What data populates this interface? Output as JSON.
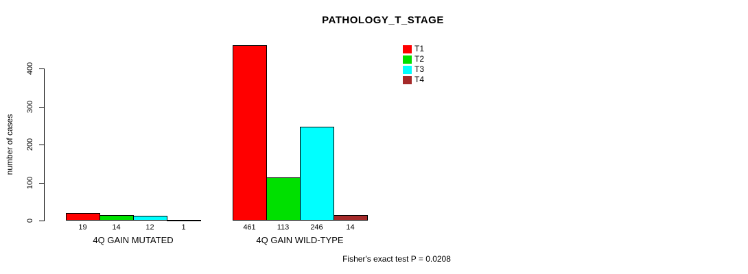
{
  "title": "PATHOLOGY_T_STAGE",
  "y_axis": {
    "label": "number of cases",
    "ticks": [
      0,
      100,
      200,
      300,
      400
    ]
  },
  "footer": "Fisher's exact test P = 0.0208",
  "chart_data": {
    "type": "bar",
    "title": "PATHOLOGY_T_STAGE",
    "xlabel": "",
    "ylabel": "number of cases",
    "categories": [
      "4Q GAIN MUTATED",
      "4Q GAIN WILD-TYPE"
    ],
    "series": [
      {
        "name": "T1",
        "color": "#FF0000",
        "values": [
          19,
          461
        ]
      },
      {
        "name": "T2",
        "color": "#00E000",
        "values": [
          14,
          113
        ]
      },
      {
        "name": "T3",
        "color": "#00FFFF",
        "values": [
          12,
          246
        ]
      },
      {
        "name": "T4",
        "color": "#A52A2A",
        "values": [
          1,
          14
        ]
      }
    ],
    "bar_value_labels": [
      [
        "19",
        "14",
        "12",
        "1"
      ],
      [
        "461",
        "113",
        "246",
        "14"
      ]
    ],
    "yticks": [
      0,
      100,
      200,
      300,
      400
    ],
    "ylim": [
      0,
      470
    ],
    "grid": false,
    "legend_position": "top-right",
    "annotation": "Fisher's exact test P = 0.0208"
  }
}
